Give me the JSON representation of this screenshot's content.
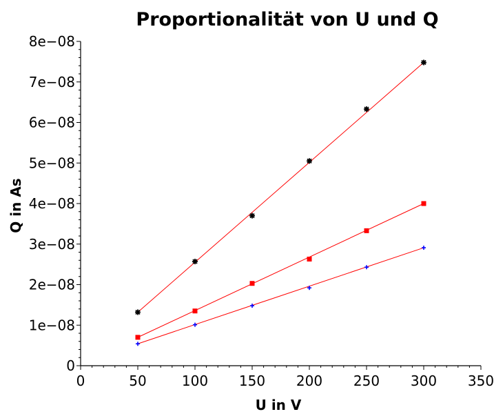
{
  "chart_data": {
    "type": "scatter",
    "title": "Proportionalität von U und Q",
    "xlabel": "U in V",
    "ylabel": "Q in As",
    "xlim": [
      0,
      350
    ],
    "ylim": [
      0,
      8e-08
    ],
    "grid": false,
    "x_ticks": [
      0,
      50,
      100,
      150,
      200,
      250,
      300,
      350
    ],
    "x_tick_labels": [
      "0",
      "50",
      "100",
      "150",
      "200",
      "250",
      "300",
      "350"
    ],
    "y_ticks": [
      0,
      1e-08,
      2e-08,
      3e-08,
      4e-08,
      5e-08,
      6e-08,
      7e-08,
      8e-08
    ],
    "y_tick_labels": [
      "0",
      "1e−08",
      "2e−08",
      "3e−08",
      "4e−08",
      "5e−08",
      "6e−08",
      "7e−08",
      "8e−08"
    ],
    "series": [
      {
        "marker": "asterisk",
        "color": "#000000",
        "line_color": "#ff0000",
        "x": [
          50,
          100,
          150,
          200,
          250,
          300
        ],
        "y": [
          1.32e-08,
          2.57e-08,
          3.7e-08,
          5.05e-08,
          6.33e-08,
          7.48e-08
        ]
      },
      {
        "marker": "square",
        "color": "#ff0000",
        "line_color": "#ff0000",
        "x": [
          50,
          100,
          150,
          200,
          250,
          300
        ],
        "y": [
          7e-09,
          1.35e-08,
          2.03e-08,
          2.63e-08,
          3.33e-08,
          4e-08
        ]
      },
      {
        "marker": "cross",
        "color": "#0000ff",
        "line_color": "#ff0000",
        "x": [
          50,
          100,
          150,
          200,
          250,
          300
        ],
        "y": [
          5.4e-09,
          1.01e-08,
          1.48e-08,
          1.92e-08,
          2.43e-08,
          2.91e-08
        ]
      }
    ]
  }
}
